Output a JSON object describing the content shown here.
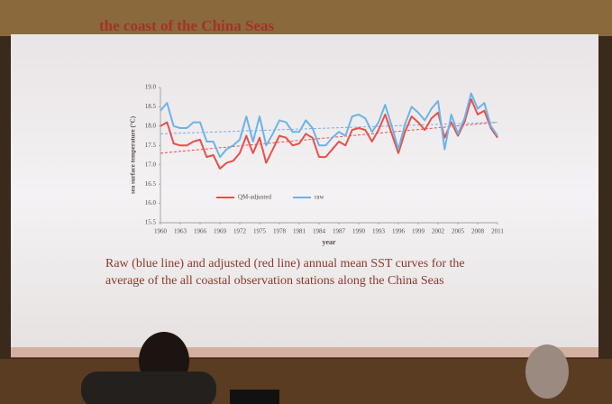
{
  "chart_data": {
    "type": "line",
    "title": "the coast of the China Seas",
    "y_label": "sea surface temperature (°C)",
    "x_label": "year",
    "caption": [
      "Raw (blue line) and adjusted (red line) annual mean SST curves for the",
      "average of the all coastal observation stations along the China Seas"
    ],
    "x": [
      1960,
      1961,
      1962,
      1963,
      1964,
      1965,
      1966,
      1967,
      1968,
      1969,
      1970,
      1971,
      1972,
      1973,
      1974,
      1975,
      1976,
      1977,
      1978,
      1979,
      1980,
      1981,
      1982,
      1983,
      1984,
      1985,
      1986,
      1987,
      1988,
      1989,
      1990,
      1991,
      1992,
      1993,
      1994,
      1995,
      1996,
      1997,
      1998,
      1999,
      2000,
      2001,
      2002,
      2003,
      2004,
      2005,
      2006,
      2007,
      2008,
      2009,
      2010,
      2011
    ],
    "series": [
      {
        "name": "QM-adjusted",
        "color": "#e8504a",
        "values": [
          18.0,
          18.1,
          17.55,
          17.5,
          17.5,
          17.6,
          17.65,
          17.2,
          17.25,
          16.9,
          17.05,
          17.1,
          17.3,
          17.75,
          17.3,
          17.7,
          17.05,
          17.4,
          17.75,
          17.7,
          17.5,
          17.55,
          17.8,
          17.7,
          17.2,
          17.2,
          17.4,
          17.6,
          17.5,
          17.9,
          17.95,
          17.9,
          17.6,
          17.9,
          18.3,
          17.8,
          17.3,
          17.85,
          18.25,
          18.1,
          17.9,
          18.2,
          18.35,
          17.7,
          18.1,
          17.75,
          18.1,
          18.7,
          18.3,
          18.4,
          17.95,
          17.7
        ]
      },
      {
        "name": "raw",
        "color": "#6db3e8",
        "values": [
          18.4,
          18.6,
          18.0,
          17.95,
          17.95,
          18.1,
          18.1,
          17.6,
          17.6,
          17.2,
          17.4,
          17.5,
          17.65,
          18.25,
          17.6,
          18.25,
          17.5,
          17.8,
          18.15,
          18.1,
          17.85,
          17.85,
          18.15,
          17.95,
          17.5,
          17.5,
          17.7,
          17.85,
          17.75,
          18.25,
          18.3,
          18.2,
          17.85,
          18.1,
          18.55,
          18.0,
          17.4,
          18.05,
          18.5,
          18.35,
          18.15,
          18.45,
          18.65,
          17.4,
          18.3,
          17.8,
          18.2,
          18.85,
          18.45,
          18.6,
          18.0,
          17.75
        ]
      }
    ],
    "trend_lines": [
      {
        "color": "#e8504a",
        "values": [
          17.3,
          18.1
        ]
      },
      {
        "color": "#6db3e8",
        "values": [
          17.8,
          18.1
        ]
      }
    ],
    "xlim": [
      1960,
      2011
    ],
    "xticks": [
      1960,
      1963,
      1966,
      1969,
      1972,
      1975,
      1978,
      1981,
      1984,
      1987,
      1990,
      1993,
      1996,
      1999,
      2002,
      2005,
      2008,
      2011
    ],
    "ylim": [
      15.5,
      19.0
    ],
    "yticks": [
      15.5,
      {
        "value": 16.0,
        "label": "16.0"
      },
      16.5,
      {
        "value": 17.0,
        "label": "17.0"
      },
      17.5,
      {
        "value": 18.0,
        "label": "18.0"
      },
      18.5,
      {
        "value": 19.0,
        "label": "19.0"
      }
    ],
    "grid": false,
    "legend_position": "lower center"
  }
}
